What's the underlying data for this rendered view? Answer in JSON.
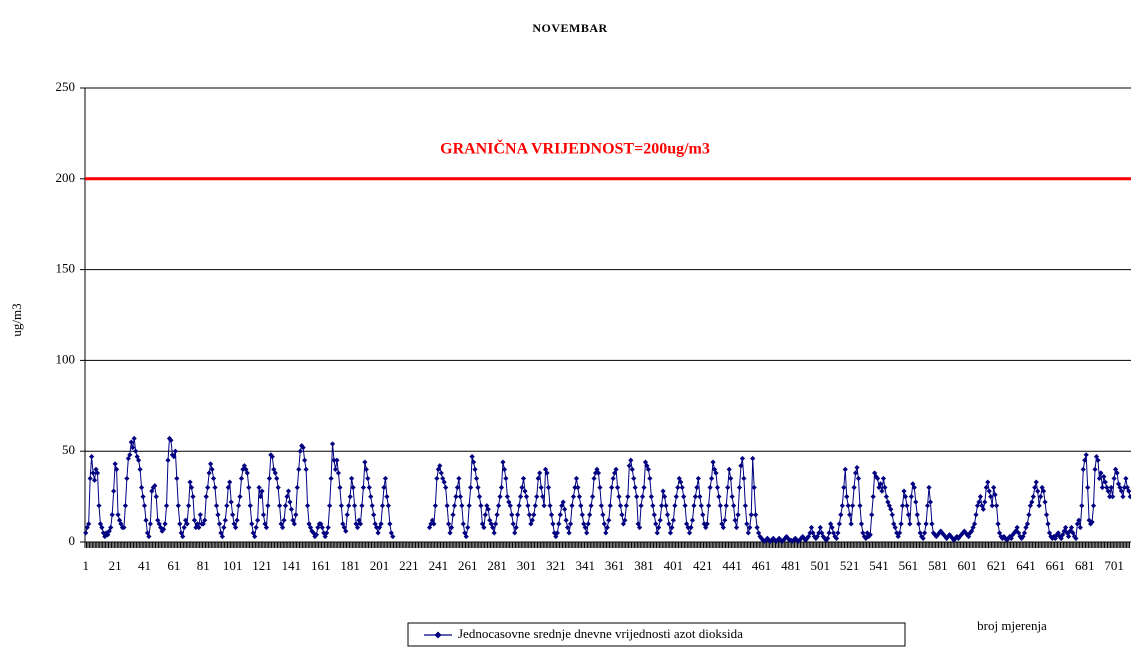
{
  "chart_data": {
    "type": "line",
    "title": "NOVEMBAR",
    "y_label": "ug/m3",
    "x_label": "broj mjerenja",
    "threshold": {
      "value": 200,
      "label": "GRANIČNA VRIJEDNOST=200ug/m3",
      "color": "#ff0000"
    },
    "ylim": [
      0,
      250
    ],
    "yticks": [
      0,
      50,
      100,
      150,
      200,
      250
    ],
    "grid": true,
    "legend": "bottom",
    "categories": [
      1,
      null,
      null,
      null,
      null,
      null,
      null,
      null,
      null,
      null,
      null,
      null,
      null,
      null,
      null,
      null,
      null,
      null,
      null,
      null,
      21,
      null,
      null,
      null,
      null,
      null,
      null,
      null,
      null,
      null,
      null,
      null,
      null,
      null,
      null,
      null,
      null,
      null,
      null,
      null,
      41,
      null,
      null,
      null,
      null,
      null,
      null,
      null,
      null,
      null,
      null,
      null,
      null,
      null,
      null,
      null,
      null,
      null,
      null,
      null,
      61,
      null,
      null,
      null,
      null,
      null,
      null,
      null,
      null,
      null,
      null,
      null,
      null,
      null,
      null,
      null,
      null,
      null,
      null,
      null,
      81,
      null,
      null,
      null,
      null,
      null,
      null,
      null,
      null,
      null,
      null,
      null,
      null,
      null,
      null,
      null,
      null,
      null,
      null,
      null,
      101,
      null,
      null,
      null,
      null,
      null,
      null,
      null,
      null,
      null,
      null,
      null,
      null,
      null,
      null,
      null,
      null,
      null,
      null,
      null,
      121,
      null,
      null,
      null,
      null,
      null,
      null,
      null,
      null,
      null,
      null,
      null,
      null,
      null,
      null,
      null,
      null,
      null,
      null,
      null,
      141,
      null,
      null,
      null,
      null,
      null,
      null,
      null,
      null,
      null,
      null,
      null,
      null,
      null,
      null,
      null,
      null,
      null,
      null,
      null,
      161,
      null,
      null,
      null,
      null,
      null,
      null,
      null,
      null,
      null,
      null,
      null,
      null,
      null,
      null,
      null,
      null,
      null,
      null,
      null,
      181,
      null,
      null,
      null,
      null,
      null,
      null,
      null,
      null,
      null,
      null,
      null,
      null,
      null,
      null,
      null,
      null,
      null,
      null,
      null,
      201,
      null,
      null,
      null,
      null,
      null,
      null,
      null,
      null,
      null,
      null,
      null,
      null,
      null,
      null,
      null,
      null,
      null,
      null,
      null,
      221,
      null,
      null,
      null,
      null,
      null,
      null,
      null,
      null,
      null,
      null,
      null,
      null,
      null,
      null,
      null,
      null,
      null,
      null,
      null,
      241,
      null,
      null,
      null,
      null,
      null,
      null,
      null,
      null,
      null,
      null,
      null,
      null,
      null,
      null,
      null,
      null,
      null,
      null,
      null,
      261,
      null,
      null,
      null,
      null,
      null,
      null,
      null,
      null,
      null,
      null,
      null,
      null,
      null,
      null,
      null,
      null,
      null,
      null,
      null,
      281,
      null,
      null,
      null,
      null,
      null,
      null,
      null,
      null,
      null,
      null,
      null,
      null,
      null,
      null,
      null,
      null,
      null,
      null,
      null,
      301,
      null,
      null,
      null,
      null,
      null,
      null,
      null,
      null,
      null,
      null,
      null,
      null,
      null,
      null,
      null,
      null,
      null,
      null,
      null,
      321,
      null,
      null,
      null,
      null,
      null,
      null,
      null,
      null,
      null,
      null,
      null,
      null,
      null,
      null,
      null,
      null,
      null,
      null,
      null,
      341,
      null,
      null,
      null,
      null,
      null,
      null,
      null,
      null,
      null,
      null,
      null,
      null,
      null,
      null,
      null,
      null,
      null,
      null,
      null,
      361,
      null,
      null,
      null,
      null,
      null,
      null,
      null,
      null,
      null,
      null,
      null,
      null,
      null,
      null,
      null,
      null,
      null,
      null,
      null,
      381,
      null,
      null,
      null,
      null,
      null,
      null,
      null,
      null,
      null,
      null,
      null,
      null,
      null,
      null,
      null,
      null,
      null,
      null,
      null,
      401,
      null,
      null,
      null,
      null,
      null,
      null,
      null,
      null,
      null,
      null,
      null,
      null,
      null,
      null,
      null,
      null,
      null,
      null,
      null,
      421,
      null,
      null,
      null,
      null,
      null,
      null,
      null,
      null,
      null,
      null,
      null,
      null,
      null,
      null,
      null,
      null,
      null,
      null,
      null,
      441,
      null,
      null,
      null,
      null,
      null,
      null,
      null,
      null,
      null,
      null,
      null,
      null,
      null,
      null,
      null,
      null,
      null,
      null,
      null,
      461,
      null,
      null,
      null,
      null,
      null,
      null,
      null,
      null,
      null,
      null,
      null,
      null,
      null,
      null,
      null,
      null,
      null,
      null,
      null,
      481,
      null,
      null,
      null,
      null,
      null,
      null,
      null,
      null,
      null,
      null,
      null,
      null,
      null,
      null,
      null,
      null,
      null,
      null,
      null,
      501,
      null,
      null,
      null,
      null,
      null,
      null,
      null,
      null,
      null,
      null,
      null,
      null,
      null,
      null,
      null,
      null,
      null,
      null,
      null,
      521,
      null,
      null,
      null,
      null,
      null,
      null,
      null,
      null,
      null,
      null,
      null,
      null,
      null,
      null,
      null,
      null,
      null,
      null,
      null,
      541,
      null,
      null,
      null,
      null,
      null,
      null,
      null,
      null,
      null,
      null,
      null,
      null,
      null,
      null,
      null,
      null,
      null,
      null,
      null,
      561,
      null,
      null,
      null,
      null,
      null,
      null,
      null,
      null,
      null,
      null,
      null,
      null,
      null,
      null,
      null,
      null,
      null,
      null,
      null,
      581,
      null,
      null,
      null,
      null,
      null,
      null,
      null,
      null,
      null,
      null,
      null,
      null,
      null,
      null,
      null,
      null,
      null,
      null,
      null,
      601,
      null,
      null,
      null,
      null,
      null,
      null,
      null,
      null,
      null,
      null,
      null,
      null,
      null,
      null,
      null,
      null,
      null,
      null,
      null,
      621,
      null,
      null,
      null,
      null,
      null,
      null,
      null,
      null,
      null,
      null,
      null,
      null,
      null,
      null,
      null,
      null,
      null,
      null,
      null,
      641,
      null,
      null,
      null,
      null,
      null,
      null,
      null,
      null,
      null,
      null,
      null,
      null,
      null,
      null,
      null,
      null,
      null,
      null,
      null,
      661,
      null,
      null,
      null,
      null,
      null,
      null,
      null,
      null,
      null,
      null,
      null,
      null,
      null,
      null,
      null,
      null,
      null,
      null,
      null,
      681,
      null,
      null,
      null,
      null,
      null,
      null,
      null,
      null,
      null,
      null,
      null,
      null,
      null,
      null,
      null,
      null,
      null,
      null,
      null,
      701,
      null,
      null,
      null,
      null,
      null,
      null,
      null,
      null,
      null,
      null,
      null
    ],
    "series": [
      {
        "name": "Jednocasovne srednje dnevne vrijednosti azot dioksida",
        "color": "#000080",
        "values": [
          5,
          8,
          10,
          35,
          47,
          38,
          34,
          40,
          38,
          20,
          10,
          8,
          5,
          3,
          5,
          4,
          6,
          8,
          15,
          28,
          43,
          40,
          15,
          12,
          10,
          8,
          8,
          20,
          35,
          46,
          48,
          55,
          52,
          57,
          50,
          47,
          45,
          40,
          30,
          25,
          20,
          12,
          5,
          3,
          10,
          28,
          30,
          31,
          25,
          12,
          10,
          8,
          6,
          7,
          10,
          20,
          45,
          57,
          56,
          48,
          47,
          50,
          35,
          20,
          10,
          5,
          3,
          8,
          12,
          10,
          20,
          33,
          30,
          25,
          12,
          8,
          10,
          8,
          15,
          10,
          10,
          12,
          25,
          30,
          38,
          43,
          40,
          35,
          30,
          20,
          15,
          10,
          5,
          3,
          8,
          12,
          20,
          30,
          33,
          22,
          15,
          10,
          8,
          12,
          20,
          25,
          35,
          40,
          42,
          40,
          38,
          30,
          20,
          10,
          5,
          3,
          8,
          12,
          30,
          25,
          28,
          15,
          10,
          8,
          20,
          35,
          48,
          47,
          40,
          38,
          35,
          30,
          20,
          10,
          8,
          12,
          20,
          25,
          28,
          22,
          18,
          12,
          10,
          15,
          30,
          40,
          50,
          53,
          52,
          45,
          40,
          20,
          10,
          8,
          6,
          5,
          3,
          4,
          8,
          10,
          10,
          8,
          5,
          3,
          5,
          8,
          20,
          35,
          54,
          45,
          40,
          45,
          38,
          30,
          20,
          10,
          8,
          6,
          15,
          20,
          25,
          35,
          30,
          20,
          10,
          8,
          12,
          10,
          20,
          30,
          44,
          40,
          35,
          30,
          25,
          20,
          15,
          10,
          8,
          5,
          8,
          10,
          20,
          30,
          35,
          25,
          20,
          10,
          5,
          3,
          null,
          null,
          null,
          null,
          null,
          null,
          null,
          null,
          null,
          null,
          null,
          null,
          null,
          null,
          null,
          null,
          null,
          null,
          null,
          null,
          null,
          null,
          null,
          null,
          8,
          10,
          12,
          10,
          20,
          35,
          40,
          42,
          38,
          35,
          33,
          30,
          20,
          10,
          5,
          8,
          15,
          20,
          25,
          30,
          35,
          25,
          20,
          10,
          5,
          3,
          8,
          20,
          30,
          47,
          44,
          40,
          35,
          30,
          25,
          20,
          10,
          8,
          15,
          20,
          18,
          12,
          10,
          8,
          5,
          10,
          15,
          20,
          25,
          30,
          44,
          40,
          35,
          25,
          22,
          20,
          15,
          10,
          5,
          8,
          15,
          20,
          25,
          30,
          35,
          28,
          25,
          20,
          15,
          10,
          12,
          15,
          20,
          25,
          35,
          38,
          30,
          25,
          20,
          40,
          38,
          30,
          20,
          15,
          10,
          5,
          3,
          5,
          10,
          15,
          20,
          22,
          18,
          12,
          8,
          5,
          10,
          20,
          25,
          30,
          35,
          30,
          25,
          20,
          15,
          10,
          8,
          5,
          10,
          15,
          20,
          25,
          35,
          38,
          40,
          38,
          30,
          20,
          15,
          10,
          5,
          8,
          12,
          20,
          30,
          35,
          38,
          40,
          30,
          25,
          20,
          15,
          10,
          12,
          20,
          25,
          42,
          45,
          40,
          35,
          30,
          25,
          10,
          8,
          20,
          25,
          30,
          44,
          42,
          40,
          35,
          25,
          20,
          15,
          10,
          5,
          8,
          12,
          20,
          28,
          25,
          20,
          15,
          10,
          5,
          8,
          12,
          20,
          25,
          30,
          35,
          33,
          30,
          25,
          20,
          10,
          8,
          5,
          8,
          12,
          20,
          25,
          30,
          35,
          25,
          20,
          15,
          10,
          8,
          10,
          20,
          30,
          35,
          44,
          40,
          38,
          30,
          25,
          20,
          10,
          8,
          12,
          20,
          30,
          40,
          35,
          25,
          20,
          12,
          8,
          15,
          30,
          42,
          46,
          35,
          20,
          10,
          5,
          8,
          15,
          46,
          30,
          15,
          8,
          5,
          3,
          2,
          1,
          0.5,
          1,
          2,
          1,
          0.5,
          1,
          2,
          1,
          0.5,
          1,
          2,
          1,
          0.5,
          1,
          2,
          3,
          2,
          1,
          1,
          0.5,
          1,
          2,
          1,
          0.5,
          1,
          2,
          3,
          2,
          1,
          2,
          3,
          5,
          8,
          5,
          3,
          2,
          3,
          5,
          8,
          5,
          3,
          2,
          1,
          2,
          5,
          10,
          8,
          5,
          3,
          2,
          5,
          10,
          15,
          20,
          30,
          40,
          25,
          20,
          15,
          10,
          20,
          30,
          38,
          41,
          35,
          20,
          10,
          5,
          3,
          2,
          5,
          3,
          4,
          15,
          25,
          38,
          36,
          35,
          30,
          32,
          28,
          35,
          30,
          25,
          22,
          20,
          18,
          15,
          10,
          8,
          5,
          3,
          5,
          10,
          20,
          28,
          25,
          20,
          15,
          10,
          25,
          32,
          30,
          22,
          15,
          10,
          5,
          3,
          2,
          5,
          10,
          20,
          30,
          22,
          10,
          5,
          4,
          3,
          4,
          5,
          6,
          5,
          4,
          3,
          2,
          3,
          4,
          3,
          2,
          1,
          2,
          3,
          2,
          3,
          4,
          5,
          6,
          5,
          4,
          3,
          5,
          6,
          8,
          10,
          15,
          20,
          22,
          25,
          20,
          18,
          22,
          30,
          33,
          28,
          25,
          20,
          30,
          26,
          20,
          10,
          5,
          3,
          2,
          3,
          2,
          1,
          2,
          3,
          2,
          4,
          5,
          6,
          8,
          5,
          3,
          2,
          3,
          5,
          8,
          10,
          15,
          20,
          22,
          25,
          30,
          33,
          28,
          20,
          25,
          30,
          28,
          22,
          15,
          10,
          5,
          3,
          2,
          3,
          2,
          4,
          5,
          3,
          2,
          4,
          6,
          8,
          5,
          3,
          6,
          8,
          5,
          3,
          2,
          10,
          12,
          8,
          20,
          40,
          45,
          48,
          30,
          12,
          10,
          11,
          20,
          40,
          47,
          45,
          35,
          38,
          30,
          36,
          33,
          30,
          28,
          25,
          30,
          25,
          35,
          40,
          38,
          32,
          30,
          28,
          25,
          30,
          35,
          30,
          28,
          25
        ]
      }
    ]
  }
}
